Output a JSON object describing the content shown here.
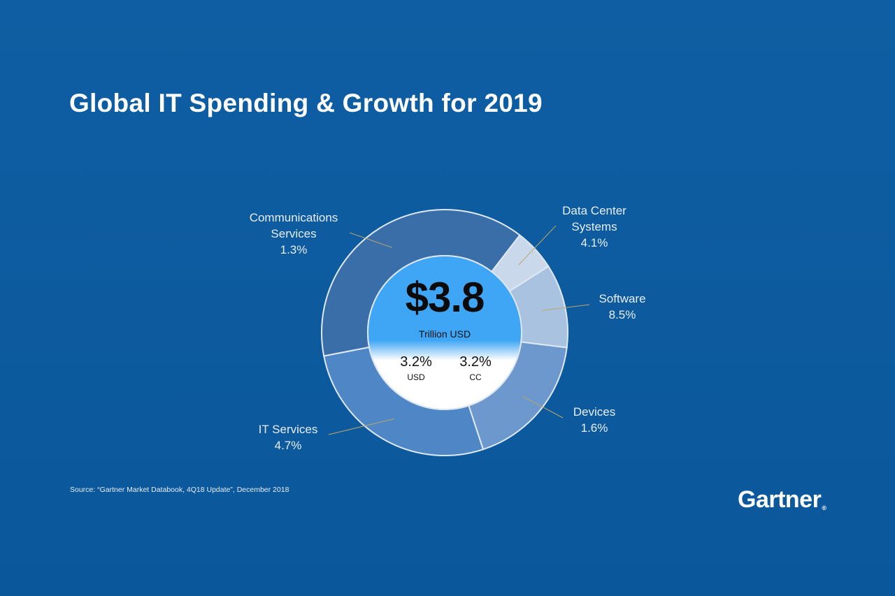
{
  "title": "Global IT Spending & Growth for 2019",
  "source": "Source: “Gartner Market Databook, 4Q18 Update”, December 2018",
  "logo": "Gartner",
  "center": {
    "total": "$3.8",
    "unit": "Trillion  USD",
    "growth_usd_value": "3.2%",
    "growth_usd_label": "USD",
    "growth_cc_value": "3.2%",
    "growth_cc_label": "CC"
  },
  "colors": {
    "background": "#0e5a9e",
    "communications": "#3a6ea8",
    "data_center": "#c9d9eb",
    "software": "#a9c2e0",
    "devices": "#6d98cd",
    "it_services": "#4e86c6",
    "center_top": "#3fa5f5",
    "center_bottom": "#ffffff",
    "leader": "#b8a86a"
  },
  "chart_data": {
    "type": "pie",
    "title": "Global IT Spending & Growth for 2019",
    "total_label": "$3.8 Trillion USD",
    "categories": [
      "Communications Services",
      "Data Center Systems",
      "Software",
      "Devices",
      "IT Services"
    ],
    "growth_labels": [
      "1.3%",
      "4.1%",
      "8.5%",
      "1.6%",
      "4.7%"
    ],
    "values_approx_share": [
      0.385,
      0.055,
      0.11,
      0.18,
      0.27
    ]
  },
  "labels": {
    "communications_name": "Communications\nServices",
    "communications_growth": "1.3%",
    "data_center_name": "Data Center\nSystems",
    "data_center_growth": "4.1%",
    "software_name": "Software",
    "software_growth": "8.5%",
    "devices_name": "Devices",
    "devices_growth": "1.6%",
    "it_services_name": "IT Services",
    "it_services_growth": "4.7%"
  }
}
